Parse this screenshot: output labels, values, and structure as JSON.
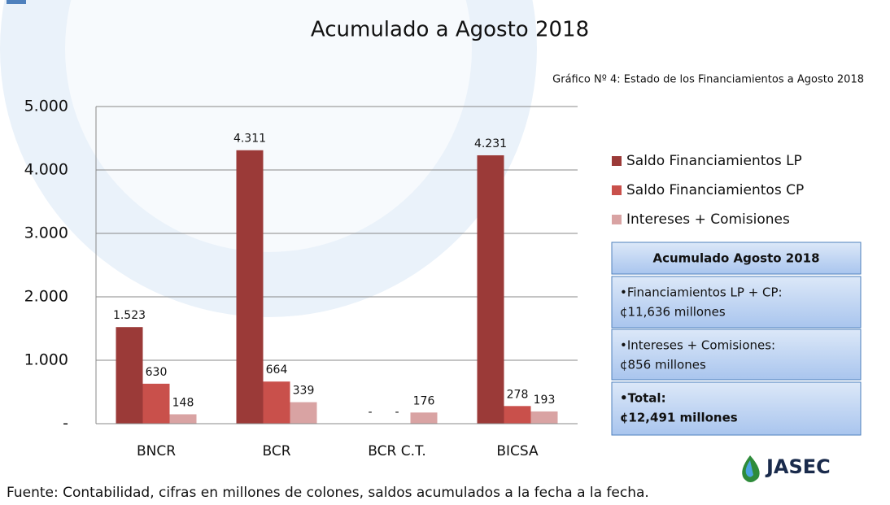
{
  "chart_data": {
    "type": "bar",
    "title": "Acumulado a Agosto 2018",
    "subtitle": "Gráfico Nº 4: Estado de los Financiamientos a Agosto 2018",
    "categories": [
      "BNCR",
      "BCR",
      "BCR C.T.",
      "BICSA"
    ],
    "series": [
      {
        "name": "Saldo Financiamientos LP",
        "color": "#9b3a38",
        "values": [
          1523,
          4311,
          0,
          4231
        ],
        "value_labels": [
          "1.523",
          "4.311",
          "-",
          "4.231"
        ]
      },
      {
        "name": "Saldo Financiamientos CP",
        "color": "#c9504b",
        "values": [
          630,
          664,
          0,
          278
        ],
        "value_labels": [
          "630",
          "664",
          "-",
          "278"
        ]
      },
      {
        "name": "Intereses + Comisiones",
        "color": "#d9a3a3",
        "values": [
          148,
          339,
          176,
          193
        ],
        "value_labels": [
          "148",
          "339",
          "176",
          "193"
        ]
      }
    ],
    "ylim": [
      0,
      5000
    ],
    "yticks": [
      {
        "value": 0,
        "label": "-"
      },
      {
        "value": 1000,
        "label": "1.000"
      },
      {
        "value": 2000,
        "label": "2.000"
      },
      {
        "value": 3000,
        "label": "3.000"
      },
      {
        "value": 4000,
        "label": "4.000"
      },
      {
        "value": 5000,
        "label": "5.000"
      }
    ],
    "grid": true,
    "legend": "right"
  },
  "summary_box": {
    "title": "Acumulado Agosto 2018",
    "items": [
      [
        "•Financiamientos LP + CP:",
        "¢11,636 millones"
      ],
      [
        "•Intereses + Comisiones:",
        "¢856 millones"
      ],
      [
        "•Total:",
        "¢12,491 millones"
      ]
    ]
  },
  "logo": "JASEC",
  "footer": "Fuente: Contabilidad, cifras en millones de colones, saldos acumulados a la fecha a la fecha."
}
